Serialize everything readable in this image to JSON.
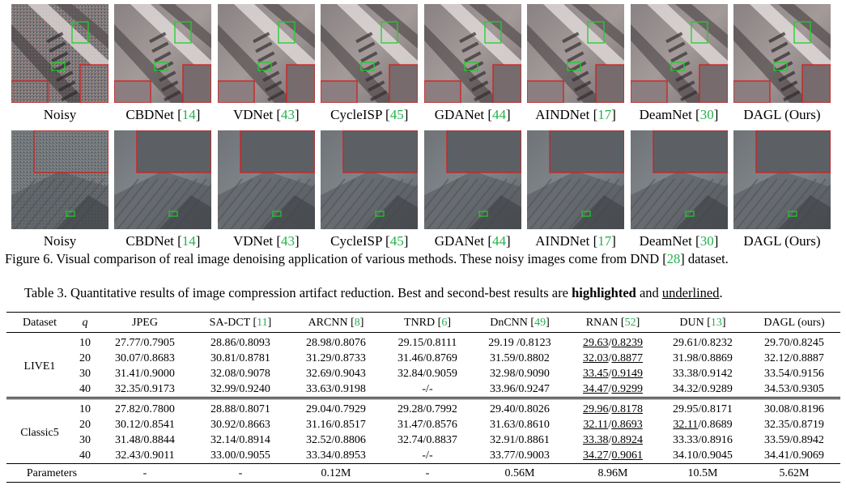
{
  "figure": {
    "row1_labels": [
      {
        "name": "Noisy",
        "cite": ""
      },
      {
        "name": "CBDNet",
        "cite": "14"
      },
      {
        "name": "VDNet",
        "cite": "43"
      },
      {
        "name": "CycleISP",
        "cite": "45"
      },
      {
        "name": "GDANet",
        "cite": "44"
      },
      {
        "name": "AINDNet",
        "cite": "17"
      },
      {
        "name": "DeamNet",
        "cite": "30"
      },
      {
        "name": "DAGL (Ours)",
        "cite": ""
      }
    ],
    "row2_labels": [
      {
        "name": "Noisy",
        "cite": ""
      },
      {
        "name": "CBDNet",
        "cite": "14"
      },
      {
        "name": "VDNet",
        "cite": "43"
      },
      {
        "name": "CycleISP",
        "cite": "45"
      },
      {
        "name": "GDANet",
        "cite": "44"
      },
      {
        "name": "AINDNet",
        "cite": "17"
      },
      {
        "name": "DeamNet",
        "cite": "30"
      },
      {
        "name": "DAGL (Ours)",
        "cite": ""
      }
    ],
    "caption_pre": "Figure 6. Visual comparison of real image denoising application of various methods. These noisy images come from DND ",
    "caption_cite": "28",
    "caption_post": " dataset.",
    "colors": {
      "cite": "#22b14c",
      "zoom_box_red": "#d11f1f",
      "zoom_box_green": "#1ecf2a"
    }
  },
  "table": {
    "caption_pre": "Table 3. Quantitative results of image compression artifact reduction. Best and second-best results are ",
    "caption_bold": "highlighted",
    "caption_mid": " and ",
    "caption_underline": "underlined",
    "caption_post": ".",
    "headers": {
      "dataset": "Dataset",
      "q": "q",
      "jpeg": "JPEG",
      "sadct": "SA-DCT",
      "sadct_cite": "11",
      "arcnn": "ARCNN",
      "arcnn_cite": "8",
      "tnrd": "TNRD",
      "tnrd_cite": "6",
      "dncnn": "DnCNN",
      "dncnn_cite": "49",
      "rnan": "RNAN",
      "rnan_cite": "52",
      "dun": "DUN",
      "dun_cite": "13",
      "dagl": "DAGL (ours)"
    },
    "live1": {
      "name": "LIVE1",
      "rows": [
        {
          "q": "10",
          "jpeg": "27.77/0.7905",
          "sadct": "28.86/0.8093",
          "arcnn": "28.98/0.8076",
          "tnrd": "29.15/0.8111",
          "dncnn": "29.19 /0.8123",
          "rnan_a": "29.63",
          "rnan_b": "0.8239",
          "dun": "29.61/0.8232",
          "dagl": "29.70/0.8245"
        },
        {
          "q": "20",
          "jpeg": "30.07/0.8683",
          "sadct": "30.81/0.8781",
          "arcnn": "31.29/0.8733",
          "tnrd": "31.46/0.8769",
          "dncnn": "31.59/0.8802",
          "rnan_a": "32.03",
          "rnan_b": "0.8877",
          "dun": "31.98/0.8869",
          "dagl": "32.12/0.8887"
        },
        {
          "q": "30",
          "jpeg": "31.41/0.9000",
          "sadct": "32.08/0.9078",
          "arcnn": "32.69/0.9043",
          "tnrd": "32.84/0.9059",
          "dncnn": "32.98/0.9090",
          "rnan_a": "33.45",
          "rnan_b": "0.9149",
          "dun": "33.38/0.9142",
          "dagl": "33.54/0.9156"
        },
        {
          "q": "40",
          "jpeg": "32.35/0.9173",
          "sadct": "32.99/0.9240",
          "arcnn": "33.63/0.9198",
          "tnrd": "-/-",
          "dncnn": "33.96/0.9247",
          "rnan_a": "34.47",
          "rnan_b": "0.9299",
          "dun": "34.32/0.9289",
          "dagl": "34.53/0.9305"
        }
      ]
    },
    "classic5": {
      "name": "Classic5",
      "rows": [
        {
          "q": "10",
          "jpeg": "27.82/0.7800",
          "sadct": "28.88/0.8071",
          "arcnn": "29.04/0.7929",
          "tnrd": "29.28/0.7992",
          "dncnn": "29.40/0.8026",
          "rnan_a": "29.96",
          "rnan_b": "0.8178",
          "dun": "29.95/0.8171",
          "dagl": "30.08/0.8196"
        },
        {
          "q": "20",
          "jpeg": "30.12/0.8541",
          "sadct": "30.92/0.8663",
          "arcnn": "31.16/0.8517",
          "tnrd": "31.47/0.8576",
          "dncnn": "31.63/0.8610",
          "rnan_a": "32.11",
          "rnan_b": "0.8693",
          "dun_a": "32.11",
          "dun_b": "0.8689",
          "dagl": "32.35/0.8719"
        },
        {
          "q": "30",
          "jpeg": "31.48/0.8844",
          "sadct": "32.14/0.8914",
          "arcnn": "32.52/0.8806",
          "tnrd": "32.74/0.8837",
          "dncnn": "32.91/0.8861",
          "rnan_a": "33.38",
          "rnan_b": "0.8924",
          "dun": "33.33/0.8916",
          "dagl": "33.59/0.8942"
        },
        {
          "q": "40",
          "jpeg": "32.43/0.9011",
          "sadct": "33.00/0.9055",
          "arcnn": "33.34/0.8953",
          "tnrd": "-/-",
          "dncnn": "33.77/0.9003",
          "rnan_a": "34.27",
          "rnan_b": "0.9061",
          "dun": "34.10/0.9045",
          "dagl": "34.41/0.9069"
        }
      ]
    },
    "params": {
      "label": "Parameters",
      "jpeg": "-",
      "sadct": "-",
      "arcnn": "0.12M",
      "tnrd": "-",
      "dncnn": "0.56M",
      "rnan": "8.96M",
      "dun": "10.5M",
      "dagl": "5.62M"
    }
  }
}
